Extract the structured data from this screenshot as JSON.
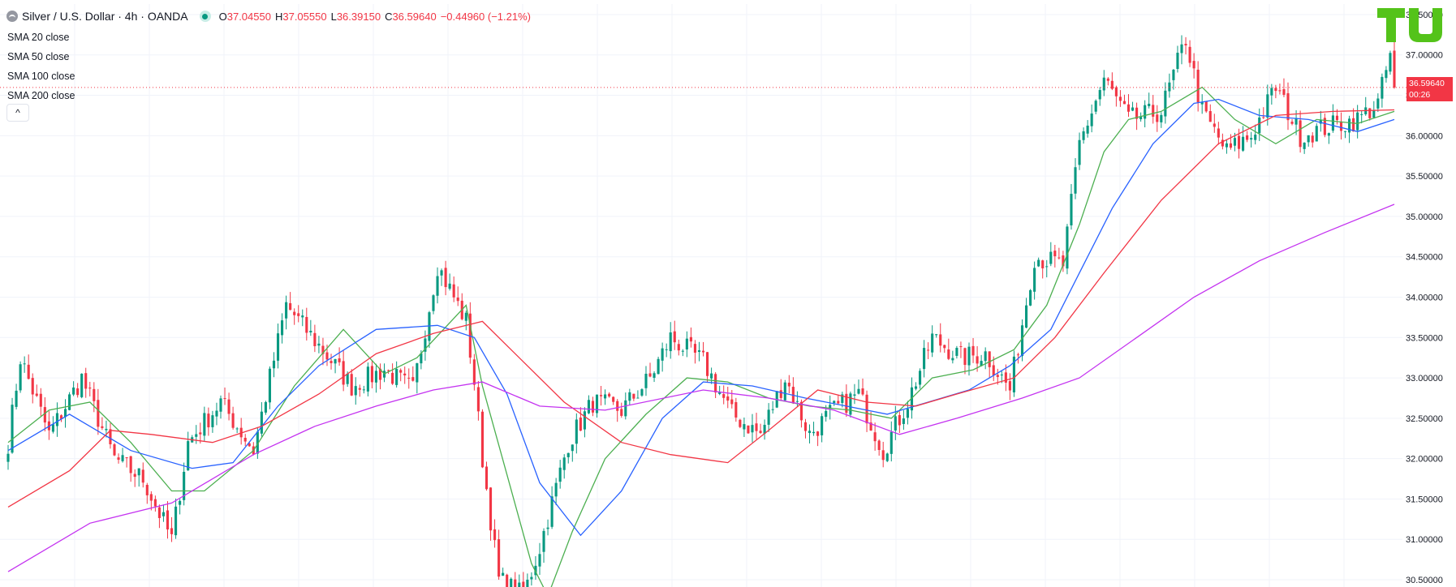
{
  "header": {
    "symbol": "Silver / U.S. Dollar · 4h · OANDA",
    "ohlc": [
      {
        "key": "O",
        "value": "37.04550"
      },
      {
        "key": "H",
        "value": "37.05550"
      },
      {
        "key": "L",
        "value": "36.39150"
      },
      {
        "key": "C",
        "value": "36.59640"
      }
    ],
    "change": "−0.44960 (−1.21%)"
  },
  "indicators": [
    {
      "name": "SMA",
      "label": "20 close",
      "color": "#4caf50"
    },
    {
      "name": "SMA",
      "label": "50 close",
      "color": "#2962ff"
    },
    {
      "name": "SMA",
      "label": "100 close",
      "color": "#f23645"
    },
    {
      "name": "SMA",
      "label": "200 close",
      "color": "#c433f0"
    }
  ],
  "collapse_glyph": "^",
  "logo_icon": "tradingview-tu-logo-icon",
  "price_tag": {
    "price": "36.59640",
    "countdown": "00:26"
  },
  "colors": {
    "up": "#089981",
    "down": "#f23645",
    "grid": "#f0f3fa",
    "axis_text": "#131722"
  },
  "chart_data": {
    "type": "candlestick",
    "title": "Silver / U.S. Dollar · 4h · OANDA",
    "ylim": [
      30.41,
      37.63
    ],
    "y_ticks": [
      "30.50000",
      "31.00000",
      "31.50000",
      "32.00000",
      "32.50000",
      "33.00000",
      "33.50000",
      "34.00000",
      "34.50000",
      "35.00000",
      "35.50000",
      "36.00000",
      "36.50000",
      "37.00000",
      "37.50000"
    ],
    "y_tick_values": [
      30.5,
      31.0,
      31.5,
      32.0,
      32.5,
      33.0,
      33.5,
      34.0,
      34.5,
      35.0,
      35.5,
      36.0,
      36.5,
      37.0,
      37.5
    ],
    "grid": true,
    "last_price": 36.5964,
    "bar_count": 340,
    "close_anchors": [
      [
        0,
        32.2
      ],
      [
        3,
        33.25
      ],
      [
        10,
        32.3
      ],
      [
        18,
        33.0
      ],
      [
        26,
        32.0
      ],
      [
        33,
        31.75
      ],
      [
        40,
        31.0
      ],
      [
        44,
        32.2
      ],
      [
        52,
        32.7
      ],
      [
        60,
        32.1
      ],
      [
        68,
        33.9
      ],
      [
        76,
        33.4
      ],
      [
        84,
        32.9
      ],
      [
        92,
        33.1
      ],
      [
        99,
        32.85
      ],
      [
        105,
        34.4
      ],
      [
        112,
        33.7
      ],
      [
        114,
        32.95
      ],
      [
        116,
        32.0
      ],
      [
        120,
        30.5
      ],
      [
        126,
        30.3
      ],
      [
        130,
        30.9
      ],
      [
        137,
        32.2
      ],
      [
        143,
        32.7
      ],
      [
        150,
        32.6
      ],
      [
        157,
        33.0
      ],
      [
        162,
        33.5
      ],
      [
        170,
        33.2
      ],
      [
        177,
        32.55
      ],
      [
        184,
        32.3
      ],
      [
        190,
        33.0
      ],
      [
        196,
        32.3
      ],
      [
        202,
        32.6
      ],
      [
        208,
        32.8
      ],
      [
        214,
        32.1
      ],
      [
        220,
        32.7
      ],
      [
        226,
        33.5
      ],
      [
        233,
        33.25
      ],
      [
        239,
        33.3
      ],
      [
        245,
        32.85
      ],
      [
        251,
        34.5
      ],
      [
        258,
        34.4
      ],
      [
        262,
        35.9
      ],
      [
        268,
        36.7
      ],
      [
        274,
        36.2
      ],
      [
        282,
        36.3
      ],
      [
        288,
        37.2
      ],
      [
        292,
        36.3
      ],
      [
        298,
        35.8
      ],
      [
        304,
        36.0
      ],
      [
        310,
        36.6
      ],
      [
        316,
        36.0
      ],
      [
        322,
        36.1
      ],
      [
        330,
        36.2
      ],
      [
        335,
        36.4
      ],
      [
        338,
        37.0
      ],
      [
        339,
        36.5964
      ]
    ],
    "series": [
      {
        "name": "SMA 20 close",
        "points": [
          [
            0,
            32.2
          ],
          [
            10,
            32.6
          ],
          [
            20,
            32.7
          ],
          [
            30,
            32.2
          ],
          [
            40,
            31.6
          ],
          [
            48,
            31.6
          ],
          [
            60,
            32.1
          ],
          [
            70,
            32.9
          ],
          [
            82,
            33.6
          ],
          [
            92,
            33.05
          ],
          [
            100,
            33.25
          ],
          [
            112,
            33.9
          ],
          [
            116,
            32.9
          ],
          [
            122,
            31.8
          ],
          [
            128,
            30.7
          ],
          [
            132,
            30.3
          ],
          [
            138,
            31.1
          ],
          [
            146,
            32.0
          ],
          [
            156,
            32.55
          ],
          [
            166,
            33.0
          ],
          [
            176,
            32.95
          ],
          [
            186,
            32.75
          ],
          [
            196,
            32.65
          ],
          [
            206,
            32.6
          ],
          [
            216,
            32.5
          ],
          [
            226,
            33.0
          ],
          [
            236,
            33.1
          ],
          [
            246,
            33.35
          ],
          [
            254,
            33.9
          ],
          [
            262,
            34.9
          ],
          [
            268,
            35.8
          ],
          [
            274,
            36.2
          ],
          [
            282,
            36.3
          ],
          [
            292,
            36.6
          ],
          [
            300,
            36.2
          ],
          [
            310,
            35.9
          ],
          [
            320,
            36.2
          ],
          [
            330,
            36.15
          ],
          [
            339,
            36.3
          ]
        ]
      },
      {
        "name": "SMA 50 close",
        "points": [
          [
            0,
            32.1
          ],
          [
            15,
            32.55
          ],
          [
            30,
            32.1
          ],
          [
            45,
            31.88
          ],
          [
            55,
            31.95
          ],
          [
            66,
            32.65
          ],
          [
            76,
            33.15
          ],
          [
            90,
            33.6
          ],
          [
            105,
            33.65
          ],
          [
            114,
            33.5
          ],
          [
            122,
            32.8
          ],
          [
            130,
            31.7
          ],
          [
            140,
            31.05
          ],
          [
            150,
            31.6
          ],
          [
            160,
            32.5
          ],
          [
            170,
            32.95
          ],
          [
            182,
            32.9
          ],
          [
            195,
            32.75
          ],
          [
            205,
            32.65
          ],
          [
            215,
            32.55
          ],
          [
            225,
            32.7
          ],
          [
            235,
            32.85
          ],
          [
            245,
            33.15
          ],
          [
            255,
            33.6
          ],
          [
            262,
            34.3
          ],
          [
            270,
            35.1
          ],
          [
            280,
            35.9
          ],
          [
            290,
            36.4
          ],
          [
            296,
            36.45
          ],
          [
            306,
            36.25
          ],
          [
            318,
            36.2
          ],
          [
            330,
            36.05
          ],
          [
            339,
            36.2
          ]
        ]
      },
      {
        "name": "SMA 100 close",
        "points": [
          [
            0,
            31.4
          ],
          [
            15,
            31.85
          ],
          [
            25,
            32.35
          ],
          [
            35,
            32.3
          ],
          [
            50,
            32.2
          ],
          [
            62,
            32.4
          ],
          [
            76,
            32.8
          ],
          [
            90,
            33.3
          ],
          [
            104,
            33.55
          ],
          [
            116,
            33.7
          ],
          [
            126,
            33.2
          ],
          [
            136,
            32.7
          ],
          [
            150,
            32.2
          ],
          [
            162,
            32.05
          ],
          [
            176,
            31.95
          ],
          [
            186,
            32.35
          ],
          [
            198,
            32.85
          ],
          [
            210,
            32.7
          ],
          [
            222,
            32.65
          ],
          [
            232,
            32.8
          ],
          [
            246,
            33.0
          ],
          [
            256,
            33.5
          ],
          [
            268,
            34.3
          ],
          [
            282,
            35.2
          ],
          [
            296,
            35.9
          ],
          [
            310,
            36.25
          ],
          [
            324,
            36.3
          ],
          [
            339,
            36.32
          ]
        ]
      },
      {
        "name": "SMA 200 close",
        "points": [
          [
            0,
            30.6
          ],
          [
            20,
            31.2
          ],
          [
            40,
            31.45
          ],
          [
            60,
            32.05
          ],
          [
            75,
            32.4
          ],
          [
            90,
            32.65
          ],
          [
            104,
            32.85
          ],
          [
            116,
            32.95
          ],
          [
            130,
            32.65
          ],
          [
            146,
            32.6
          ],
          [
            170,
            32.85
          ],
          [
            186,
            32.75
          ],
          [
            202,
            32.6
          ],
          [
            218,
            32.3
          ],
          [
            232,
            32.5
          ],
          [
            248,
            32.75
          ],
          [
            262,
            33.0
          ],
          [
            276,
            33.5
          ],
          [
            290,
            34.0
          ],
          [
            306,
            34.45
          ],
          [
            322,
            34.8
          ],
          [
            339,
            35.15
          ]
        ]
      }
    ]
  }
}
